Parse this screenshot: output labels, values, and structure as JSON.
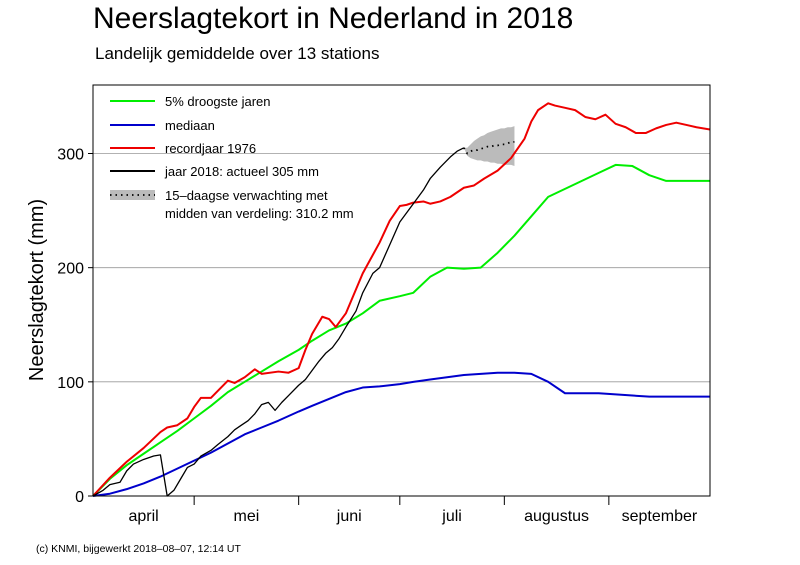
{
  "title": "Neerslagtekort in Nederland in 2018",
  "subtitle": "Landelijk gemiddelde over 13 stations",
  "footer": "(c) KNMI, bijgewerkt 2018–08–07, 12:14 UT",
  "chart_data": {
    "type": "line",
    "ylabel": "Neerslagtekort (mm)",
    "xlabel": "",
    "ylim": [
      0,
      360
    ],
    "xlim": [
      0,
      183
    ],
    "yticks": [
      0,
      100,
      200,
      300
    ],
    "grid": true,
    "legend_position": "top-left",
    "months": [
      {
        "label": "april",
        "start": 0,
        "end": 30
      },
      {
        "label": "mei",
        "start": 30,
        "end": 61
      },
      {
        "label": "juni",
        "start": 61,
        "end": 91
      },
      {
        "label": "juli",
        "start": 91,
        "end": 122
      },
      {
        "label": "augustus",
        "start": 122,
        "end": 153
      },
      {
        "label": "september",
        "start": 153,
        "end": 183
      }
    ],
    "series": [
      {
        "name": "5% droogste jaren",
        "color": "#00ee00",
        "x": [
          0,
          5,
          10,
          15,
          20,
          25,
          30,
          35,
          40,
          45,
          50,
          55,
          61,
          65,
          70,
          75,
          80,
          85,
          91,
          95,
          100,
          105,
          110,
          115,
          120,
          125,
          130,
          135,
          140,
          145,
          150,
          155,
          160,
          165,
          170,
          175,
          180,
          183
        ],
        "y": [
          0,
          15,
          27,
          37,
          47,
          57,
          68,
          79,
          91,
          100,
          109,
          118,
          128,
          136,
          145,
          151,
          160,
          171,
          175,
          178,
          192,
          200,
          199,
          200,
          213,
          228,
          245,
          262,
          269,
          276,
          283,
          290,
          289,
          281,
          276,
          276,
          276,
          276
        ]
      },
      {
        "name": "mediaan",
        "color": "#0000cc",
        "x": [
          0,
          5,
          10,
          15,
          20,
          25,
          30,
          35,
          40,
          45,
          50,
          55,
          61,
          65,
          70,
          75,
          80,
          85,
          91,
          95,
          100,
          105,
          110,
          115,
          120,
          125,
          130,
          135,
          140,
          145,
          150,
          155,
          160,
          165,
          170,
          175,
          180,
          183
        ],
        "y": [
          0,
          2,
          6,
          11,
          17,
          24,
          31,
          38,
          46,
          54,
          60,
          66,
          74,
          79,
          85,
          91,
          95,
          96,
          98,
          100,
          102,
          104,
          106,
          107,
          108,
          108,
          107,
          100,
          90,
          90,
          90,
          89,
          88,
          87,
          87,
          87,
          87,
          87
        ]
      },
      {
        "name": "recordjaar 1976",
        "color": "#ee0000",
        "x": [
          0,
          5,
          10,
          15,
          20,
          22,
          25,
          28,
          30,
          32,
          35,
          37,
          40,
          42,
          45,
          48,
          50,
          55,
          58,
          61,
          63,
          65,
          68,
          70,
          72,
          75,
          80,
          85,
          88,
          91,
          93,
          95,
          98,
          100,
          103,
          106,
          110,
          113,
          116,
          120,
          124,
          128,
          130,
          132,
          135,
          137,
          140,
          143,
          146,
          149,
          152,
          155,
          158,
          161,
          164,
          167,
          170,
          173,
          176,
          179,
          183
        ],
        "y": [
          0,
          16,
          30,
          42,
          56,
          60,
          62,
          68,
          78,
          86,
          86,
          92,
          101,
          99,
          104,
          111,
          107,
          109,
          108,
          112,
          128,
          142,
          157,
          155,
          148,
          160,
          195,
          222,
          241,
          254,
          255,
          257,
          258,
          256,
          258,
          262,
          270,
          272,
          278,
          285,
          296,
          313,
          328,
          338,
          344,
          342,
          340,
          338,
          332,
          330,
          334,
          326,
          323,
          318,
          318,
          322,
          325,
          327,
          325,
          323,
          321
        ]
      },
      {
        "name": "jaar 2018: actueel 305 mm",
        "color": "#000000",
        "x": [
          0,
          3,
          5,
          8,
          10,
          12,
          15,
          18,
          20,
          22,
          24,
          26,
          28,
          30,
          32,
          35,
          37,
          40,
          42,
          44,
          46,
          48,
          50,
          52,
          54,
          56,
          58,
          61,
          63,
          65,
          67,
          69,
          71,
          73,
          75,
          78,
          80,
          83,
          85,
          88,
          91,
          93,
          95,
          98,
          100,
          103,
          106,
          108,
          110
        ],
        "y": [
          0,
          5,
          10,
          12,
          22,
          28,
          32,
          35,
          36,
          0,
          5,
          15,
          25,
          28,
          35,
          40,
          45,
          52,
          58,
          62,
          66,
          72,
          80,
          82,
          75,
          82,
          88,
          97,
          102,
          110,
          118,
          125,
          130,
          138,
          148,
          162,
          178,
          195,
          200,
          220,
          240,
          248,
          256,
          268,
          278,
          288,
          297,
          302,
          305
        ]
      },
      {
        "name": "15–daagse verwachting met midden van verdeling: 310.2 mm",
        "color": "#000000",
        "x": [
          110,
          111,
          112,
          113,
          114,
          115,
          116,
          117,
          118,
          119,
          120,
          121,
          122,
          123,
          124,
          125
        ],
        "y": [
          305,
          300,
          302,
          303,
          303,
          304,
          305,
          306,
          306,
          307,
          307,
          308,
          308,
          309,
          310,
          310.2
        ],
        "band_low": [
          305,
          298,
          296,
          295,
          294,
          294,
          293,
          293,
          292,
          292,
          291,
          291,
          290,
          290,
          290,
          289
        ],
        "band_high": [
          305,
          305,
          308,
          311,
          313,
          315,
          316,
          318,
          319,
          320,
          321,
          322,
          322,
          323,
          323,
          324
        ],
        "band_color": "#bbbbbb"
      }
    ]
  }
}
